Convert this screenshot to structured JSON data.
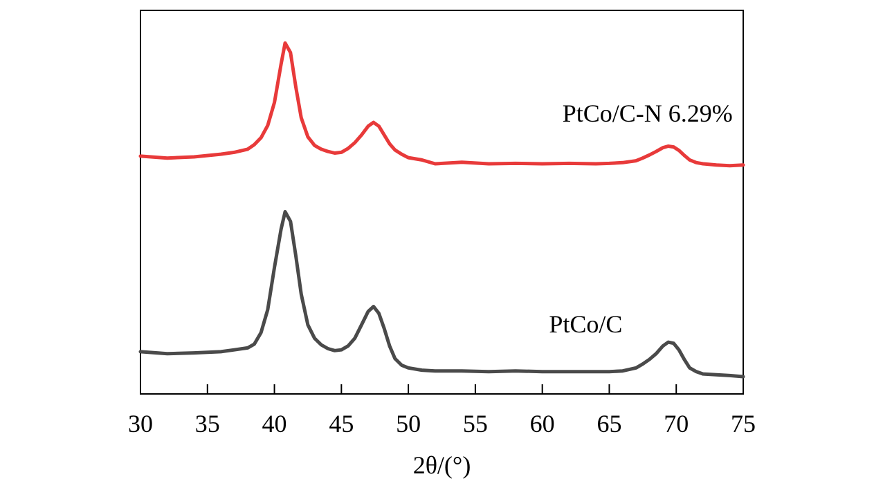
{
  "chart_data": {
    "type": "line",
    "title": "",
    "xlabel": "2θ/(°)",
    "ylabel": "",
    "xlim": [
      30,
      75
    ],
    "ylim": [
      0,
      1
    ],
    "xticks": [
      30,
      35,
      40,
      45,
      50,
      55,
      60,
      65,
      70,
      75
    ],
    "xtick_labels": [
      "30",
      "35",
      "40",
      "45",
      "50",
      "55",
      "60",
      "65",
      "70",
      "75"
    ],
    "y_ticks_shown": false,
    "grid": false,
    "series": [
      {
        "name": "PtCo/C-N 6.29%",
        "color": "#e83a3a",
        "x": [
          30,
          32,
          34,
          36,
          37,
          38,
          38.5,
          39,
          39.5,
          40,
          40.5,
          40.8,
          41.2,
          41.6,
          42,
          42.5,
          43,
          43.5,
          44,
          44.5,
          45,
          45.5,
          46,
          46.5,
          47,
          47.4,
          47.8,
          48.2,
          48.6,
          49,
          49.5,
          50,
          51,
          52,
          54,
          56,
          58,
          60,
          62,
          64,
          65,
          66,
          67,
          67.5,
          68,
          68.5,
          69,
          69.4,
          69.8,
          70.2,
          70.6,
          71,
          71.5,
          72,
          73,
          74,
          75
        ],
        "y": [
          0.62,
          0.615,
          0.618,
          0.625,
          0.63,
          0.638,
          0.65,
          0.668,
          0.7,
          0.76,
          0.86,
          0.915,
          0.89,
          0.8,
          0.72,
          0.67,
          0.648,
          0.638,
          0.632,
          0.628,
          0.63,
          0.64,
          0.655,
          0.675,
          0.698,
          0.708,
          0.698,
          0.675,
          0.652,
          0.636,
          0.625,
          0.616,
          0.61,
          0.6,
          0.604,
          0.6,
          0.601,
          0.6,
          0.601,
          0.6,
          0.601,
          0.603,
          0.608,
          0.615,
          0.623,
          0.632,
          0.642,
          0.646,
          0.644,
          0.635,
          0.622,
          0.61,
          0.603,
          0.6,
          0.597,
          0.595,
          0.597
        ]
      },
      {
        "name": "PtCo/C",
        "color": "#4a4a4a",
        "x": [
          30,
          32,
          34,
          36,
          37,
          38,
          38.5,
          39,
          39.5,
          40,
          40.5,
          40.8,
          41.2,
          41.6,
          42,
          42.5,
          43,
          43.5,
          44,
          44.5,
          45,
          45.5,
          46,
          46.5,
          47,
          47.4,
          47.8,
          48.2,
          48.6,
          49,
          49.5,
          50,
          51,
          52,
          54,
          56,
          58,
          60,
          62,
          64,
          65,
          66,
          67,
          67.5,
          68,
          68.5,
          69,
          69.4,
          69.8,
          70.2,
          70.6,
          71,
          71.5,
          72,
          73,
          74,
          75
        ],
        "y": [
          0.11,
          0.105,
          0.107,
          0.11,
          0.115,
          0.12,
          0.13,
          0.16,
          0.22,
          0.33,
          0.43,
          0.475,
          0.45,
          0.36,
          0.26,
          0.18,
          0.145,
          0.128,
          0.118,
          0.113,
          0.115,
          0.125,
          0.145,
          0.18,
          0.215,
          0.228,
          0.21,
          0.17,
          0.125,
          0.092,
          0.075,
          0.068,
          0.062,
          0.06,
          0.06,
          0.058,
          0.06,
          0.058,
          0.058,
          0.058,
          0.058,
          0.06,
          0.068,
          0.078,
          0.09,
          0.105,
          0.125,
          0.135,
          0.132,
          0.115,
          0.09,
          0.068,
          0.058,
          0.052,
          0.05,
          0.048,
          0.045
        ]
      }
    ],
    "annotations": [
      {
        "text": "PtCo/C-N 6.29%",
        "x": 61.5,
        "y": 0.71
      },
      {
        "text": "PtCo/C",
        "x": 60.5,
        "y": 0.16
      }
    ]
  }
}
